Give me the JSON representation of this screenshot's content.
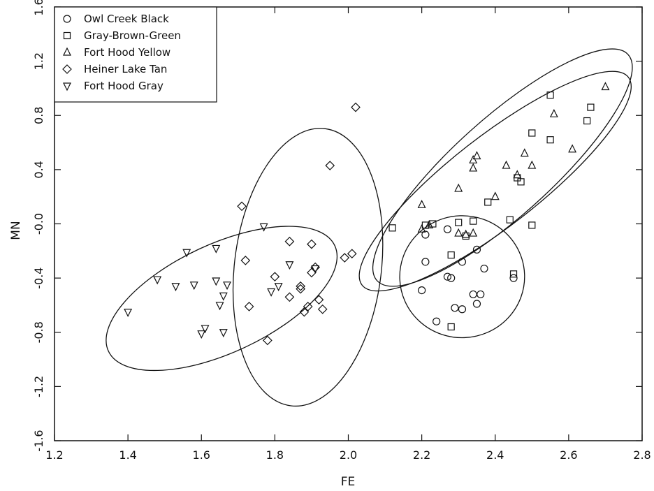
{
  "chart_data": {
    "type": "scatter",
    "xlabel": "FE",
    "ylabel": "MN",
    "xlim": [
      1.2,
      2.8
    ],
    "ylim": [
      -1.6,
      1.6
    ],
    "xticks": [
      1.2,
      1.4,
      1.6,
      1.8,
      2.0,
      2.2,
      2.4,
      2.6,
      2.8
    ],
    "yticks": [
      -1.6,
      -1.2,
      -0.8,
      -0.4,
      -0.0,
      0.4,
      0.8,
      1.2,
      1.6
    ],
    "xtick_labels": [
      "1.2",
      "1.4",
      "1.6",
      "1.8",
      "2.0",
      "2.2",
      "2.4",
      "2.6",
      "2.8"
    ],
    "ytick_labels": [
      "-1.6",
      "-1.2",
      "-0.8",
      "-0.4",
      "-0.0",
      "0.4",
      "0.8",
      "1.2",
      "1.6"
    ],
    "legend_position": "top-left",
    "series": [
      {
        "name": "Owl Creek Black",
        "marker": "circle",
        "points": [
          [
            2.21,
            -0.08
          ],
          [
            2.27,
            -0.04
          ],
          [
            2.21,
            -0.28
          ],
          [
            2.2,
            -0.49
          ],
          [
            2.24,
            -0.72
          ],
          [
            2.27,
            -0.39
          ],
          [
            2.28,
            -0.4
          ],
          [
            2.29,
            -0.62
          ],
          [
            2.31,
            -0.63
          ],
          [
            2.31,
            -0.28
          ],
          [
            2.34,
            -0.52
          ],
          [
            2.35,
            -0.19
          ],
          [
            2.35,
            -0.59
          ],
          [
            2.36,
            -0.52
          ],
          [
            2.37,
            -0.33
          ],
          [
            2.45,
            -0.4
          ]
        ]
      },
      {
        "name": "Gray-Brown-Green",
        "marker": "square",
        "points": [
          [
            2.12,
            -0.03
          ],
          [
            2.21,
            -0.01
          ],
          [
            2.23,
            0.0
          ],
          [
            2.28,
            -0.23
          ],
          [
            2.28,
            -0.76
          ],
          [
            2.3,
            0.01
          ],
          [
            2.32,
            -0.09
          ],
          [
            2.34,
            0.02
          ],
          [
            2.38,
            0.16
          ],
          [
            2.44,
            0.03
          ],
          [
            2.46,
            0.34
          ],
          [
            2.47,
            0.31
          ],
          [
            2.45,
            -0.37
          ],
          [
            2.5,
            0.67
          ],
          [
            2.5,
            -0.01
          ],
          [
            2.55,
            0.62
          ],
          [
            2.55,
            0.95
          ],
          [
            2.65,
            0.76
          ],
          [
            2.66,
            0.86
          ]
        ]
      },
      {
        "name": "Fort Hood Yellow",
        "marker": "triangle-up",
        "points": [
          [
            2.2,
            0.14
          ],
          [
            2.2,
            -0.04
          ],
          [
            2.22,
            -0.01
          ],
          [
            2.3,
            0.26
          ],
          [
            2.3,
            -0.07
          ],
          [
            2.32,
            -0.08
          ],
          [
            2.34,
            0.41
          ],
          [
            2.34,
            0.47
          ],
          [
            2.35,
            0.5
          ],
          [
            2.34,
            -0.07
          ],
          [
            2.4,
            0.2
          ],
          [
            2.43,
            0.43
          ],
          [
            2.46,
            0.36
          ],
          [
            2.48,
            0.52
          ],
          [
            2.5,
            0.43
          ],
          [
            2.56,
            0.81
          ],
          [
            2.61,
            0.55
          ],
          [
            2.7,
            1.01
          ]
        ]
      },
      {
        "name": "Heiner Lake Tan",
        "marker": "diamond",
        "points": [
          [
            1.71,
            0.13
          ],
          [
            1.72,
            -0.27
          ],
          [
            1.73,
            -0.61
          ],
          [
            1.78,
            -0.86
          ],
          [
            1.8,
            -0.39
          ],
          [
            1.84,
            -0.13
          ],
          [
            1.84,
            -0.54
          ],
          [
            1.87,
            -0.48
          ],
          [
            1.88,
            -0.65
          ],
          [
            1.87,
            -0.46
          ],
          [
            1.89,
            -0.61
          ],
          [
            1.9,
            -0.15
          ],
          [
            1.9,
            -0.36
          ],
          [
            1.91,
            -0.32
          ],
          [
            1.93,
            -0.63
          ],
          [
            1.92,
            -0.56
          ],
          [
            1.95,
            0.43
          ],
          [
            1.99,
            -0.25
          ],
          [
            2.01,
            -0.22
          ],
          [
            2.02,
            0.86
          ]
        ]
      },
      {
        "name": "Fort Hood Gray",
        "marker": "triangle-down",
        "points": [
          [
            1.4,
            -0.65
          ],
          [
            1.48,
            -0.41
          ],
          [
            1.53,
            -0.46
          ],
          [
            1.56,
            -0.21
          ],
          [
            1.58,
            -0.45
          ],
          [
            1.6,
            -0.81
          ],
          [
            1.61,
            -0.77
          ],
          [
            1.64,
            -0.18
          ],
          [
            1.64,
            -0.42
          ],
          [
            1.65,
            -0.6
          ],
          [
            1.66,
            -0.53
          ],
          [
            1.66,
            -0.8
          ],
          [
            1.67,
            -0.45
          ],
          [
            1.77,
            -0.02
          ],
          [
            1.79,
            -0.5
          ],
          [
            1.81,
            -0.46
          ],
          [
            1.84,
            -0.3
          ],
          [
            1.91,
            -0.33
          ]
        ]
      }
    ],
    "ellipses": [
      {
        "cx": 1.655,
        "cy": -0.55,
        "rx": 0.34,
        "ry": 0.4,
        "angle": 25
      },
      {
        "cx": 1.89,
        "cy": -0.32,
        "rx": 0.2,
        "ry": 1.03,
        "angle": -7
      },
      {
        "cx": 2.31,
        "cy": -0.39,
        "rx": 0.17,
        "ry": 0.45,
        "angle": 2
      },
      {
        "cx": 2.4,
        "cy": 0.315,
        "rx": 0.46,
        "ry": 0.33,
        "angle": 38
      },
      {
        "cx": 2.42,
        "cy": 0.415,
        "rx": 0.46,
        "ry": 0.36,
        "angle": 42
      }
    ]
  }
}
